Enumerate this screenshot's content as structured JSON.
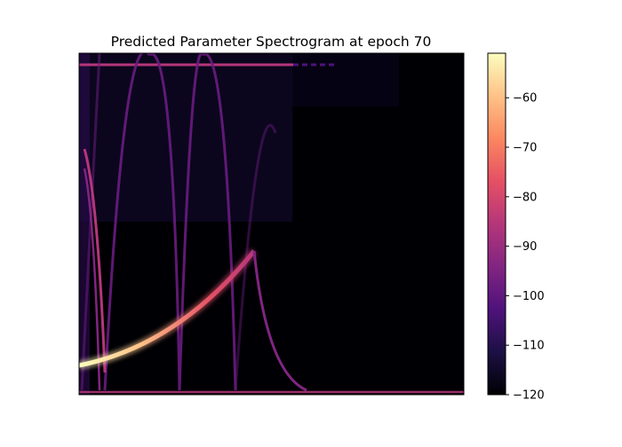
{
  "chart_data": {
    "type": "heatmap",
    "title": "Predicted Parameter Spectrogram at epoch 70",
    "xlabel": "",
    "ylabel": "",
    "x_ticks_visible": false,
    "y_ticks_visible": false,
    "colormap": "magma",
    "colorbar": {
      "vmin": -120,
      "vmax": -51,
      "ticks": [
        -120,
        -110,
        -100,
        -90,
        -80,
        -70,
        -60
      ],
      "tick_labels": [
        "−120",
        "−110",
        "−100",
        "−90",
        "−80",
        "−70",
        "−60"
      ]
    },
    "colors": {
      "background": "#000004",
      "magma_stops": [
        "#000004",
        "#1c1044",
        "#4f127b",
        "#812581",
        "#b5367a",
        "#e55064",
        "#fb8761",
        "#fec287",
        "#fcfdbf"
      ]
    },
    "features": [
      {
        "name": "rising chirp",
        "level": -55
      },
      {
        "name": "decay tail",
        "level": -95
      },
      {
        "name": "folded harmonic arcs",
        "level": -100
      },
      {
        "name": "top horizontal line",
        "level": -95
      },
      {
        "name": "bottom horizontal line",
        "level": -95
      },
      {
        "name": "left descending curve",
        "level": -90
      }
    ]
  }
}
